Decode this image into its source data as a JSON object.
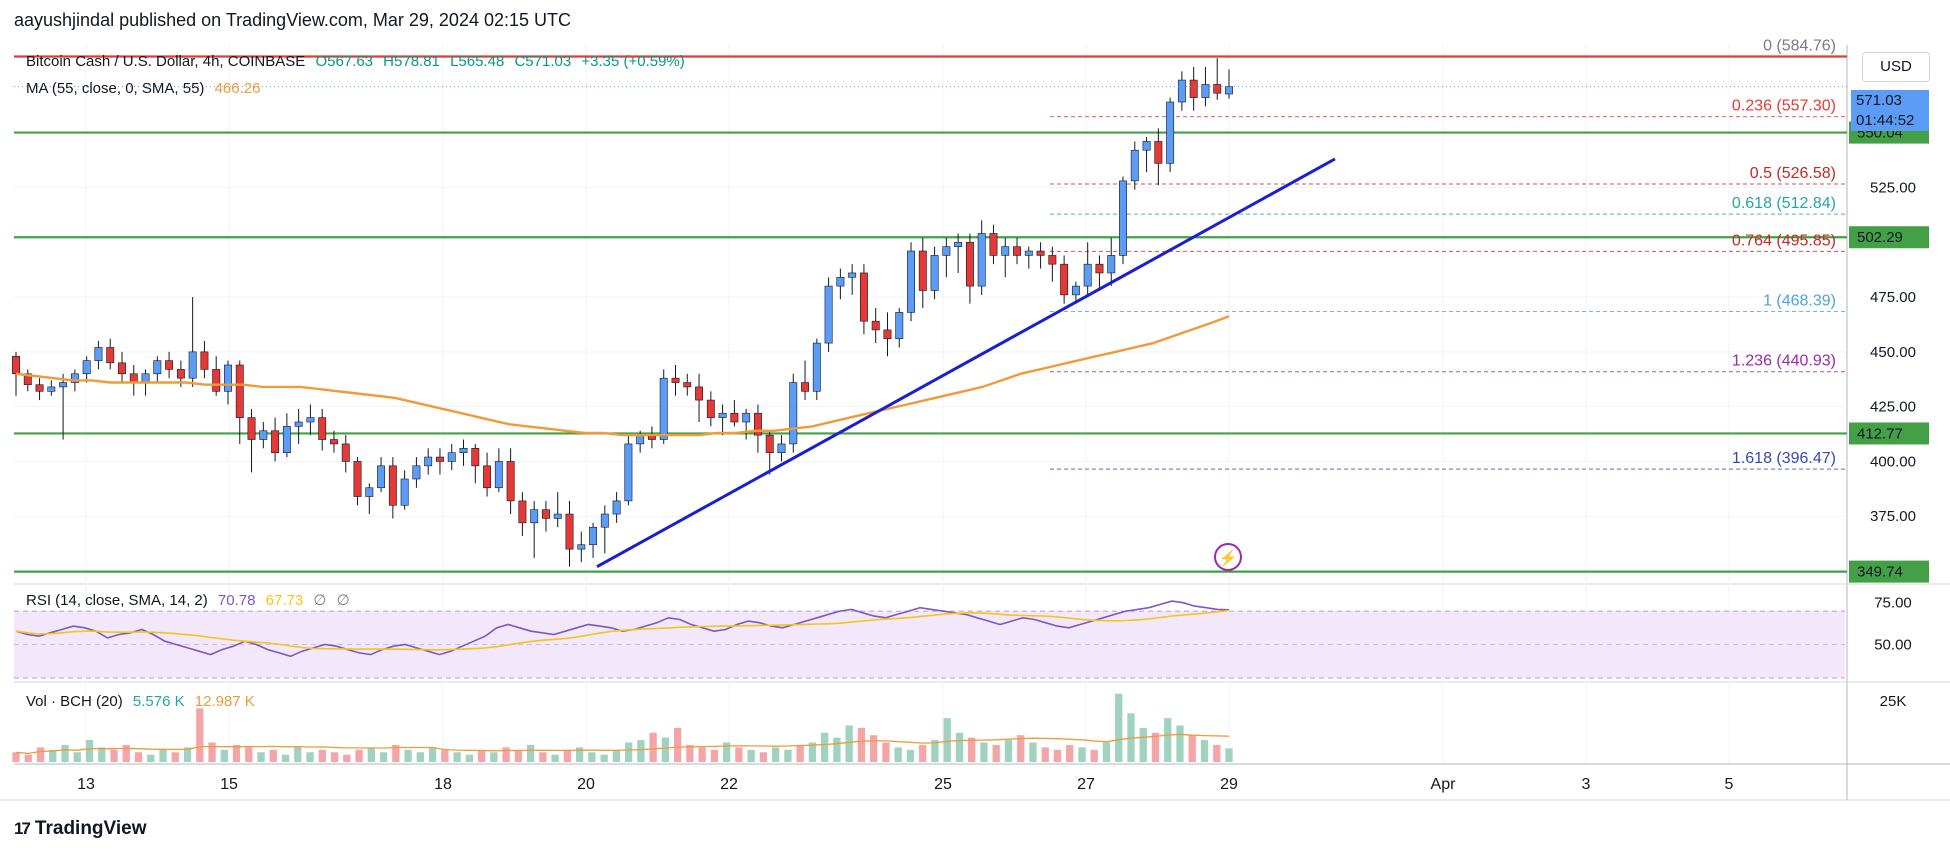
{
  "header": {
    "publisher": "aayushjindal published on TradingView.com, Mar 29, 2024 02:15 UTC"
  },
  "legend": {
    "symbol": "Bitcoin Cash / U.S. Dollar, 4h, COINBASE",
    "open": "O567.63",
    "high": "H578.81",
    "low": "L565.48",
    "close": "C571.03",
    "change": "+3.35 (+0.59%)",
    "ma_label": "MA (55, close, 0, SMA, 55)",
    "ma_value": "466.26",
    "rsi_label": "RSI (14, close, SMA, 14, 2)",
    "rsi_value": "70.78",
    "rsi_sma_value": "67.73",
    "rsi_extra1": "∅",
    "rsi_extra2": "∅",
    "vol_label": "Vol · BCH (20)",
    "vol_value": "5.576 K",
    "vol_ma_value": "12.987 K"
  },
  "toolbar": {
    "currency": "USD"
  },
  "current_price": {
    "price": "571.03",
    "countdown": "01:44:52"
  },
  "branding": {
    "logo_mark": "17",
    "logo_text": "TradingView"
  },
  "colors": {
    "up": "#5b9cf6",
    "down": "#e53935",
    "ma": "#f09a3a",
    "support": "#43a047",
    "resistance": "#e53935",
    "trendline": "#1a1fcf",
    "rsi": "#7e57c2",
    "rsi_sma": "#f5c518",
    "vol_up": "#9fd3c0",
    "vol_down": "#f4a5a8"
  },
  "chart_data": {
    "type": "candlestick",
    "timeframe": "4h",
    "x_tick_labels": [
      "13",
      "15",
      "18",
      "20",
      "22",
      "25",
      "27",
      "29",
      "Apr",
      "3",
      "5"
    ],
    "y_tick_labels": [
      "375.00",
      "400.00",
      "425.00",
      "450.00",
      "475.00",
      "525.00"
    ],
    "ylim": [
      345,
      590
    ],
    "candles_ohlc": [
      [
        448,
        450,
        430,
        440
      ],
      [
        440,
        442,
        432,
        435
      ],
      [
        435,
        438,
        428,
        432
      ],
      [
        432,
        437,
        430,
        434
      ],
      [
        434,
        440,
        410,
        436
      ],
      [
        436,
        442,
        432,
        440
      ],
      [
        440,
        448,
        436,
        446
      ],
      [
        446,
        455,
        442,
        452
      ],
      [
        452,
        456,
        442,
        445
      ],
      [
        445,
        450,
        436,
        440
      ],
      [
        440,
        444,
        430,
        436
      ],
      [
        436,
        442,
        430,
        440
      ],
      [
        440,
        448,
        436,
        446
      ],
      [
        446,
        450,
        438,
        442
      ],
      [
        442,
        446,
        434,
        438
      ],
      [
        438,
        475,
        434,
        450
      ],
      [
        450,
        455,
        438,
        442
      ],
      [
        442,
        448,
        430,
        432
      ],
      [
        432,
        446,
        426,
        444
      ],
      [
        444,
        446,
        408,
        420
      ],
      [
        420,
        424,
        395,
        410
      ],
      [
        410,
        418,
        406,
        414
      ],
      [
        414,
        420,
        400,
        404
      ],
      [
        404,
        422,
        402,
        416
      ],
      [
        416,
        424,
        408,
        418
      ],
      [
        418,
        426,
        412,
        420
      ],
      [
        420,
        424,
        405,
        410
      ],
      [
        410,
        414,
        404,
        408
      ],
      [
        408,
        412,
        395,
        400
      ],
      [
        400,
        402,
        380,
        384
      ],
      [
        384,
        390,
        376,
        388
      ],
      [
        388,
        402,
        386,
        398
      ],
      [
        398,
        402,
        374,
        380
      ],
      [
        380,
        396,
        378,
        392
      ],
      [
        392,
        402,
        388,
        398
      ],
      [
        398,
        406,
        394,
        402
      ],
      [
        402,
        406,
        394,
        400
      ],
      [
        400,
        408,
        396,
        404
      ],
      [
        404,
        410,
        398,
        406
      ],
      [
        406,
        408,
        390,
        398
      ],
      [
        398,
        404,
        384,
        388
      ],
      [
        388,
        406,
        386,
        400
      ],
      [
        400,
        406,
        376,
        382
      ],
      [
        382,
        386,
        366,
        372
      ],
      [
        372,
        382,
        356,
        378
      ],
      [
        378,
        382,
        368,
        374
      ],
      [
        374,
        386,
        370,
        376
      ],
      [
        376,
        382,
        352,
        360
      ],
      [
        360,
        368,
        354,
        362
      ],
      [
        362,
        372,
        356,
        370
      ],
      [
        370,
        380,
        358,
        376
      ],
      [
        376,
        386,
        372,
        382
      ],
      [
        382,
        412,
        380,
        408
      ],
      [
        408,
        414,
        404,
        412
      ],
      [
        412,
        416,
        406,
        410
      ],
      [
        410,
        442,
        408,
        438
      ],
      [
        438,
        444,
        430,
        436
      ],
      [
        436,
        440,
        430,
        434
      ],
      [
        434,
        440,
        418,
        428
      ],
      [
        428,
        432,
        416,
        420
      ],
      [
        420,
        426,
        412,
        422
      ],
      [
        422,
        428,
        416,
        418
      ],
      [
        418,
        424,
        410,
        422
      ],
      [
        422,
        426,
        404,
        412
      ],
      [
        412,
        414,
        394,
        404
      ],
      [
        404,
        412,
        400,
        408
      ],
      [
        408,
        440,
        404,
        436
      ],
      [
        436,
        446,
        428,
        432
      ],
      [
        432,
        456,
        428,
        454
      ],
      [
        454,
        484,
        450,
        480
      ],
      [
        480,
        488,
        474,
        484
      ],
      [
        484,
        490,
        476,
        486
      ],
      [
        486,
        490,
        458,
        464
      ],
      [
        464,
        470,
        454,
        460
      ],
      [
        460,
        468,
        448,
        456
      ],
      [
        456,
        470,
        452,
        468
      ],
      [
        468,
        500,
        464,
        496
      ],
      [
        496,
        502,
        470,
        478
      ],
      [
        478,
        498,
        474,
        494
      ],
      [
        494,
        502,
        484,
        498
      ],
      [
        498,
        504,
        486,
        500
      ],
      [
        500,
        504,
        472,
        480
      ],
      [
        480,
        510,
        476,
        504
      ],
      [
        504,
        508,
        490,
        494
      ],
      [
        494,
        502,
        484,
        498
      ],
      [
        498,
        502,
        490,
        494
      ],
      [
        494,
        498,
        488,
        496
      ],
      [
        496,
        500,
        488,
        494
      ],
      [
        494,
        498,
        482,
        490
      ],
      [
        490,
        494,
        472,
        476
      ],
      [
        476,
        482,
        472,
        480
      ],
      [
        480,
        500,
        476,
        490
      ],
      [
        490,
        494,
        478,
        486
      ],
      [
        486,
        502,
        480,
        494
      ],
      [
        494,
        530,
        490,
        528
      ],
      [
        528,
        546,
        524,
        542
      ],
      [
        542,
        548,
        532,
        546
      ],
      [
        546,
        552,
        526,
        536
      ],
      [
        536,
        566,
        532,
        564
      ],
      [
        564,
        578,
        560,
        574
      ],
      [
        574,
        580,
        560,
        566
      ],
      [
        566,
        580,
        562,
        572
      ],
      [
        572,
        584,
        565,
        568
      ],
      [
        567.63,
        578.81,
        565.48,
        571.03
      ]
    ],
    "ma55": [
      440,
      439,
      438,
      437,
      437,
      436,
      436,
      436,
      436,
      436,
      435,
      435,
      435,
      434,
      434,
      434,
      433,
      432,
      431,
      430,
      429,
      427,
      425,
      423,
      421,
      419,
      417,
      416,
      415,
      414,
      413,
      413,
      412,
      412,
      412,
      412,
      412,
      413,
      413,
      414,
      414,
      415,
      416,
      418,
      420,
      422,
      424,
      426,
      428,
      430,
      432,
      434,
      437,
      440,
      442,
      444,
      446,
      448,
      450,
      452,
      454,
      457,
      460,
      463,
      466.26
    ],
    "rsi": [
      58,
      56,
      55,
      57,
      59,
      61,
      60,
      58,
      54,
      56,
      57,
      59,
      56,
      52,
      50,
      48,
      46,
      44,
      47,
      49,
      52,
      50,
      47,
      45,
      43,
      46,
      48,
      50,
      49,
      47,
      45,
      44,
      47,
      49,
      50,
      48,
      46,
      44,
      46,
      49,
      52,
      55,
      60,
      62,
      60,
      58,
      57,
      56,
      58,
      60,
      62,
      61,
      60,
      58,
      59,
      61,
      63,
      66,
      65,
      62,
      60,
      58,
      59,
      62,
      64,
      63,
      61,
      60,
      62,
      64,
      66,
      68,
      70,
      71,
      69,
      67,
      66,
      68,
      70,
      72,
      71,
      70,
      69,
      68,
      66,
      64,
      62,
      64,
      66,
      65,
      63,
      61,
      60,
      62,
      64,
      66,
      68,
      70,
      71,
      72,
      74,
      76,
      75,
      73,
      72,
      71,
      70.78
    ],
    "rsi_ylim": [
      30,
      85
    ],
    "rsi_tick_labels": [
      "75.00",
      "50.00"
    ],
    "rsi_bands": [
      70,
      30
    ],
    "volume": [
      4,
      3,
      6,
      5,
      7,
      4,
      9,
      6,
      5,
      7,
      4,
      3,
      5,
      4,
      6,
      22,
      8,
      5,
      7,
      6,
      4,
      5,
      3,
      6,
      4,
      5,
      4,
      3,
      5,
      6,
      4,
      7,
      5,
      4,
      6,
      5,
      4,
      3,
      5,
      4,
      6,
      5,
      7,
      4,
      3,
      5,
      6,
      4,
      3,
      5,
      8,
      9,
      12,
      10,
      14,
      7,
      6,
      5,
      8,
      6,
      5,
      4,
      6,
      5,
      7,
      8,
      12,
      10,
      15,
      14,
      11,
      8,
      6,
      5,
      7,
      9,
      18,
      12,
      10,
      8,
      7,
      9,
      11,
      8,
      6,
      5,
      7,
      6,
      5,
      8,
      28,
      20,
      14,
      12,
      18,
      15,
      11,
      9,
      7,
      5.576
    ],
    "vol_ylim": [
      0,
      32
    ],
    "vol_tick_label": "25K",
    "levels": {
      "support": [
        "550.04",
        "502.29",
        "412.77",
        "349.74"
      ],
      "resistance": "584.76"
    },
    "fib_levels": [
      {
        "ratio": "0",
        "price": "(584.76)",
        "value": 584.76,
        "color": "#787b86"
      },
      {
        "ratio": "0.236",
        "price": "(557.30)",
        "value": 557.3,
        "color": "#e53935"
      },
      {
        "ratio": "0.5",
        "price": "(526.58)",
        "value": 526.58,
        "color": "#c62828"
      },
      {
        "ratio": "0.618",
        "price": "(512.84)",
        "value": 512.84,
        "color": "#26a69a"
      },
      {
        "ratio": "0.764",
        "price": "(495.85)",
        "value": 495.85,
        "color": "#c62828"
      },
      {
        "ratio": "1",
        "price": "(468.39)",
        "value": 468.39,
        "color": "#4fa3e0"
      },
      {
        "ratio": "1.236",
        "price": "(440.93)",
        "value": 440.93,
        "color": "#9c27b0"
      },
      {
        "ratio": "1.618",
        "price": "(396.47)",
        "value": 396.47,
        "color": "#3949ab"
      }
    ]
  }
}
